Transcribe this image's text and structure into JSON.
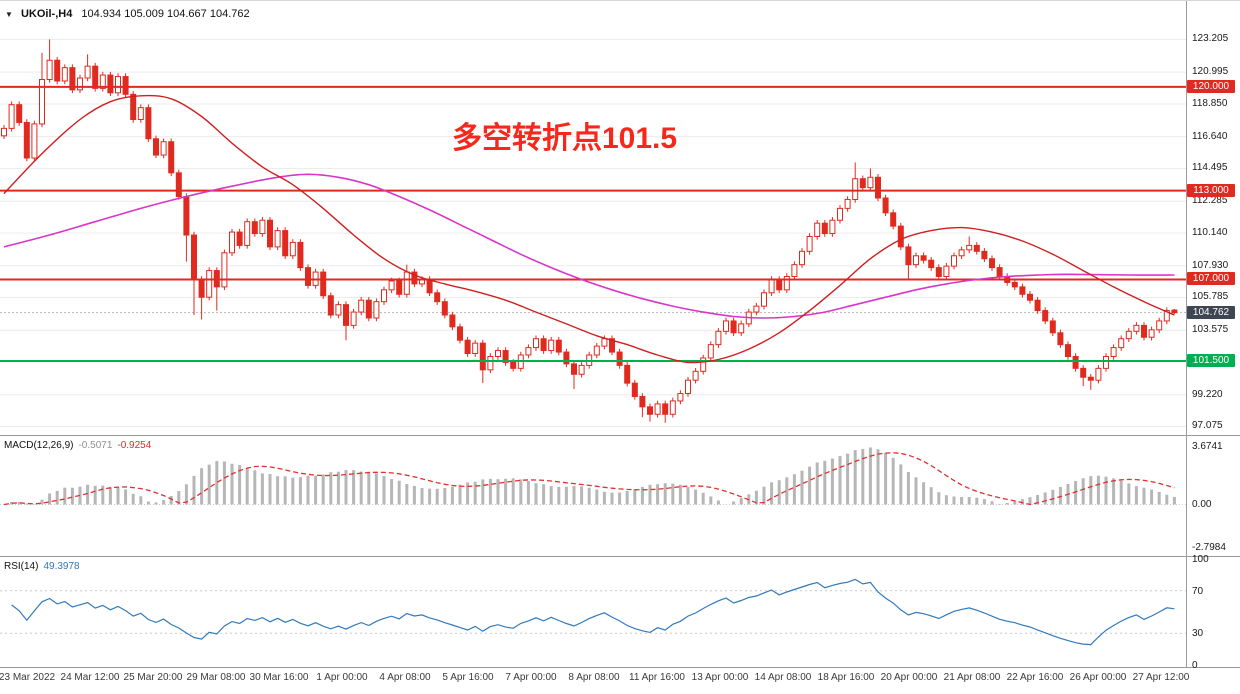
{
  "header": {
    "symbol": "UKOil-,H4",
    "open": "104.934",
    "high": "105.009",
    "low": "104.667",
    "close": "104.762",
    "ohlc_text": "104.934 105.009 104.667 104.762"
  },
  "annotation": {
    "text": "多空转折点101.5",
    "color": "#f5281b"
  },
  "indicator_labels": {
    "macd_name": "MACD(12,26,9)",
    "macd_value": "-0.5071",
    "macd_signal": "-0.9254",
    "rsi_name": "RSI(14)",
    "rsi_value": "49.3978"
  },
  "chart_data": {
    "type": "candlestick",
    "symbol": "UKOil-",
    "timeframe": "H4",
    "title": "UKOil-,H4 104.934 105.009 104.667 104.762",
    "current_price": 104.762,
    "last_candle_ohlc": {
      "open": 104.934,
      "high": 105.009,
      "low": 104.667,
      "close": 104.762
    },
    "price_axis": {
      "range": [
        96.5,
        125.8
      ],
      "ticks": [
        "123.205",
        "120.995",
        "118.850",
        "116.640",
        "114.495",
        "112.285",
        "110.140",
        "107.930",
        "105.785",
        "103.575",
        "99.220",
        "97.075"
      ],
      "badges": [
        {
          "label": "120.000",
          "price": 120.0,
          "color": "#e02a1f",
          "type": "hline"
        },
        {
          "label": "113.000",
          "price": 113.0,
          "color": "#e02a1f",
          "type": "hline"
        },
        {
          "label": "107.000",
          "price": 107.0,
          "color": "#e02a1f",
          "type": "hline"
        },
        {
          "label": "104.762",
          "price": 104.762,
          "color": "#3e4553",
          "type": "current"
        },
        {
          "label": "101.500",
          "price": 101.5,
          "color": "#00b050",
          "type": "hline"
        }
      ]
    },
    "horizontal_lines": [
      {
        "label": "120.000",
        "price": 120.0,
        "color": "#e02a1f"
      },
      {
        "label": "113.000",
        "price": 113.0,
        "color": "#e02a1f"
      },
      {
        "label": "107.000",
        "price": 107.0,
        "color": "#e02a1f"
      },
      {
        "label": "101.500",
        "price": 101.5,
        "color": "#00b050"
      }
    ],
    "candles": {
      "closes": [
        117.2,
        118.8,
        117.6,
        115.2,
        117.5,
        120.5,
        121.8,
        120.4,
        121.3,
        119.8,
        120.6,
        121.4,
        119.9,
        120.8,
        119.6,
        120.7,
        119.5,
        117.8,
        118.6,
        116.5,
        115.4,
        116.3,
        114.2,
        112.6,
        110.0,
        107.0,
        105.8,
        107.6,
        106.5,
        108.8,
        110.2,
        109.3,
        110.9,
        110.1,
        111.0,
        109.2,
        110.3,
        108.6,
        109.5,
        107.8,
        106.6,
        107.5,
        105.9,
        104.6,
        105.3,
        103.9,
        104.8,
        105.6,
        104.4,
        105.5,
        106.3,
        106.9,
        106.0,
        107.5,
        106.7,
        107.0,
        106.1,
        105.5,
        104.6,
        103.8,
        102.9,
        102.0,
        102.7,
        100.9,
        101.8,
        102.2,
        101.4,
        101.0,
        101.9,
        102.4,
        103.0,
        102.2,
        102.9,
        102.1,
        101.3,
        100.6,
        101.2,
        101.9,
        102.5,
        103.0,
        102.1,
        101.2,
        100.0,
        99.1,
        98.4,
        97.9,
        98.6,
        97.9,
        98.8,
        99.3,
        100.2,
        100.8,
        101.7,
        102.6,
        103.5,
        104.2,
        103.4,
        104.0,
        104.8,
        105.2,
        106.1,
        107.0,
        106.3,
        107.2,
        108.0,
        108.9,
        109.9,
        110.8,
        110.1,
        111.0,
        111.8,
        112.4,
        113.8,
        113.2,
        113.9,
        112.5,
        111.5,
        110.6,
        109.2,
        108.0,
        108.6,
        108.3,
        107.8,
        107.2,
        107.9,
        108.6,
        109.0,
        109.3,
        108.9,
        108.4,
        107.8,
        107.2,
        106.8,
        106.5,
        106.0,
        105.6,
        104.9,
        104.2,
        103.4,
        102.6,
        101.8,
        101.0,
        100.4,
        100.2,
        101.0,
        101.8,
        102.4,
        103.0,
        103.5,
        103.9,
        103.1,
        103.6,
        104.2,
        104.9,
        104.762
      ],
      "wicks": {
        "5": [
          122.3,
          null
        ],
        "6": [
          123.205,
          null
        ],
        "11": [
          122.2,
          null
        ],
        "24": [
          null,
          108.2
        ],
        "25": [
          null,
          104.6
        ],
        "26": [
          null,
          104.3
        ],
        "28": [
          null,
          104.9
        ],
        "45": [
          null,
          102.9
        ],
        "53": [
          108.0,
          null
        ],
        "63": [
          null,
          100.0
        ],
        "75": [
          null,
          99.6
        ],
        "84": [
          null,
          97.7
        ],
        "85": [
          null,
          97.4
        ],
        "87": [
          null,
          97.32
        ],
        "112": [
          114.9,
          null
        ],
        "114": [
          114.5,
          null
        ],
        "119": [
          null,
          107.0
        ],
        "127": [
          109.9,
          null
        ],
        "142": [
          null,
          99.8
        ],
        "143": [
          null,
          99.55
        ]
      }
    },
    "overlays": {
      "ma_red": [
        [
          0,
          112.8
        ],
        [
          5,
          115.5
        ],
        [
          10,
          117.8
        ],
        [
          14,
          119.0
        ],
        [
          18,
          119.4
        ],
        [
          22,
          119.2
        ],
        [
          26,
          118.0
        ],
        [
          30,
          116.2
        ],
        [
          34,
          114.6
        ],
        [
          38,
          113.4
        ],
        [
          42,
          111.8
        ],
        [
          46,
          110.0
        ],
        [
          50,
          108.4
        ],
        [
          54,
          107.3
        ],
        [
          58,
          106.7
        ],
        [
          62,
          106.2
        ],
        [
          66,
          105.6
        ],
        [
          70,
          104.8
        ],
        [
          74,
          104.0
        ],
        [
          78,
          103.2
        ],
        [
          82,
          102.6
        ],
        [
          86,
          101.9
        ],
        [
          90,
          101.4
        ],
        [
          94,
          101.6
        ],
        [
          98,
          102.3
        ],
        [
          102,
          103.4
        ],
        [
          106,
          104.9
        ],
        [
          110,
          106.6
        ],
        [
          114,
          108.4
        ],
        [
          118,
          109.7
        ],
        [
          122,
          110.3
        ],
        [
          126,
          110.5
        ],
        [
          130,
          110.2
        ],
        [
          134,
          109.6
        ],
        [
          138,
          108.7
        ],
        [
          142,
          107.6
        ],
        [
          146,
          106.5
        ],
        [
          150,
          105.5
        ],
        [
          154,
          104.6
        ]
      ],
      "ma_magenta": [
        [
          0,
          109.2
        ],
        [
          6,
          110.0
        ],
        [
          12,
          110.9
        ],
        [
          18,
          111.8
        ],
        [
          24,
          112.6
        ],
        [
          30,
          113.3
        ],
        [
          36,
          113.9
        ],
        [
          40,
          114.1
        ],
        [
          44,
          113.9
        ],
        [
          48,
          113.4
        ],
        [
          52,
          112.6
        ],
        [
          56,
          111.7
        ],
        [
          60,
          110.7
        ],
        [
          64,
          109.7
        ],
        [
          68,
          108.7
        ],
        [
          72,
          107.8
        ],
        [
          76,
          107.0
        ],
        [
          80,
          106.3
        ],
        [
          84,
          105.7
        ],
        [
          88,
          105.2
        ],
        [
          92,
          104.8
        ],
        [
          96,
          104.5
        ],
        [
          100,
          104.4
        ],
        [
          104,
          104.5
        ],
        [
          108,
          104.8
        ],
        [
          112,
          105.3
        ],
        [
          116,
          105.8
        ],
        [
          120,
          106.3
        ],
        [
          124,
          106.7
        ],
        [
          128,
          107.0
        ],
        [
          132,
          107.2
        ],
        [
          136,
          107.3
        ],
        [
          140,
          107.35
        ],
        [
          148,
          107.3
        ],
        [
          154,
          107.3
        ]
      ]
    },
    "indicators": {
      "macd": {
        "name": "MACD",
        "params": "12,26,9",
        "value_main": -0.5071,
        "value_signal": -0.9254,
        "axis_ticks": [
          "3.6741",
          "0.00",
          "-2.7984"
        ],
        "axis_max": 3.6741,
        "axis_min": -2.7984,
        "histogram_color": "#b6b6b6",
        "signal_color": "#e03030",
        "signal_style": "dashed"
      },
      "rsi": {
        "name": "RSI",
        "params": "14",
        "value": 49.3978,
        "axis_ticks": [
          100,
          70,
          30,
          0
        ],
        "levels": [
          70,
          30
        ],
        "line_color": "#3179bd"
      }
    },
    "time_axis": {
      "ticks": [
        "23 Mar 2022",
        "24 Mar 12:00",
        "25 Mar 20:00",
        "29 Mar 08:00",
        "30 Mar 16:00",
        "1 Apr 00:00",
        "4 Apr 08:00",
        "5 Apr 16:00",
        "7 Apr 00:00",
        "8 Apr 08:00",
        "11 Apr 16:00",
        "13 Apr 00:00",
        "14 Apr 08:00",
        "18 Apr 16:00",
        "20 Apr 00:00",
        "21 Apr 08:00",
        "22 Apr 16:00",
        "26 Apr 00:00",
        "27 Apr 12:00"
      ]
    },
    "colors": {
      "bear": "#e02a1f",
      "bull_fill": "#ffffff",
      "ma_red": "#cf1f1f",
      "ma_magenta": "#d936c8",
      "macd_signal": "#e03030",
      "rsi": "#3179bd",
      "hline_red": "#e02a1f",
      "hline_green": "#00b050",
      "current_badge": "#3e4553",
      "grid": "#ececec"
    }
  }
}
